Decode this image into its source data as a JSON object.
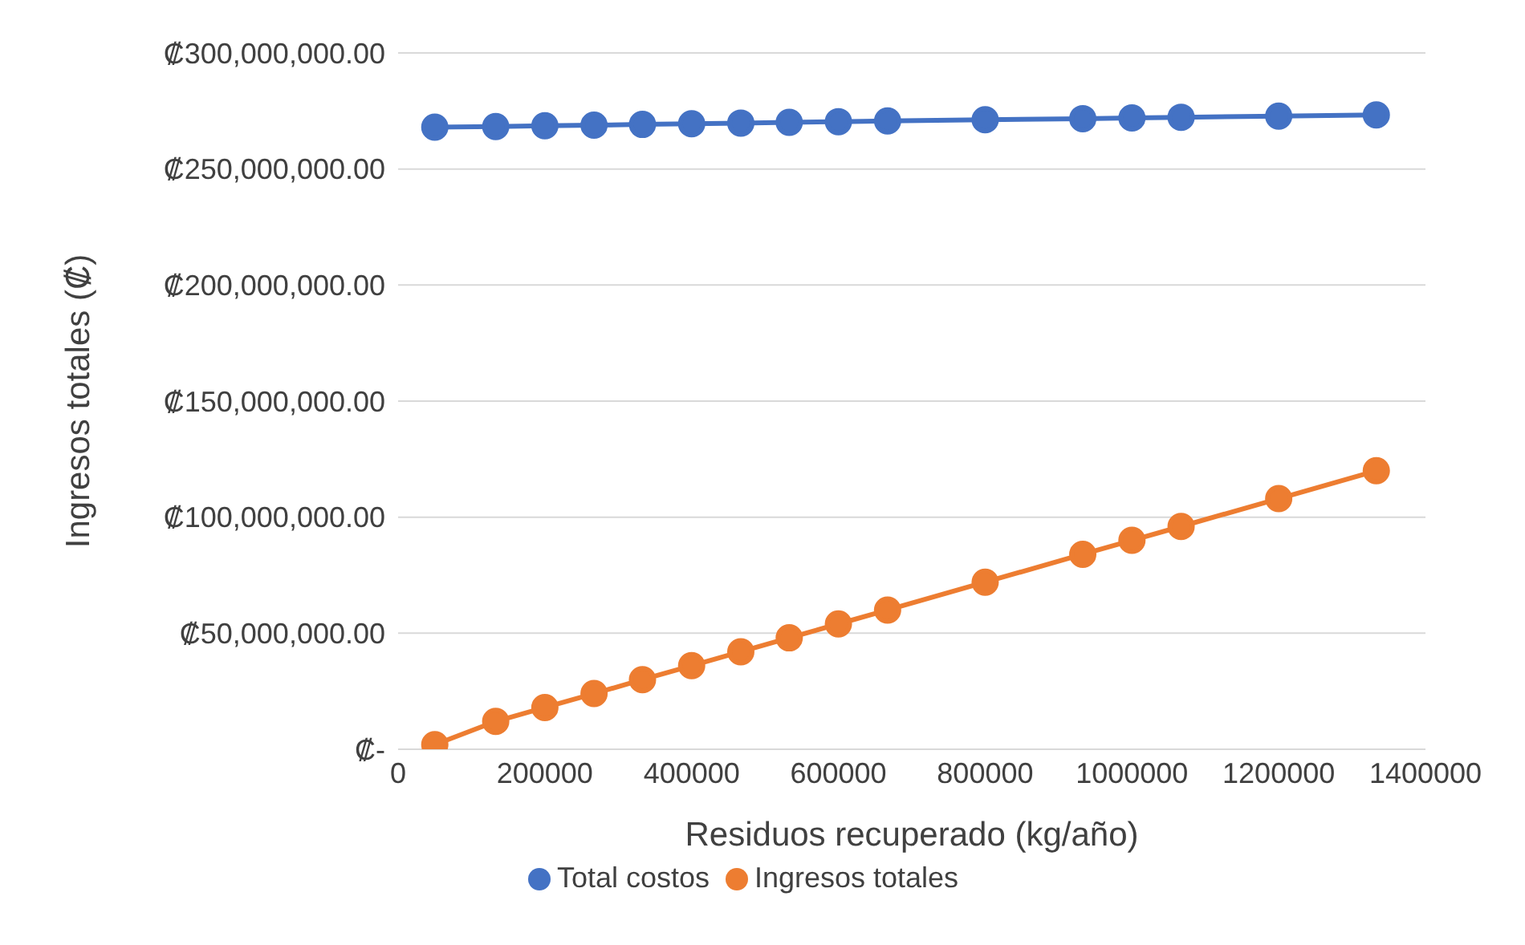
{
  "chart_data": {
    "type": "line",
    "xlabel": "Residuos recuperado (kg/año)",
    "ylabel": "Ingresos totales (₡)",
    "x": [
      50000,
      133000,
      200000,
      267000,
      333000,
      400000,
      467000,
      533000,
      600000,
      667000,
      800000,
      933000,
      1000000,
      1067000,
      1200000,
      1333000
    ],
    "series": [
      {
        "name": "Total costos",
        "color": "#4472c4",
        "values": [
          268000000,
          268300000,
          268600000,
          268900000,
          269200000,
          269500000,
          269800000,
          270100000,
          270400000,
          270700000,
          271200000,
          271700000,
          272000000,
          272300000,
          272800000,
          273300000
        ]
      },
      {
        "name": "Ingresos totales",
        "color": "#ed7d31",
        "values": [
          2000000,
          12000000,
          18000000,
          24000000,
          30000000,
          36000000,
          42000000,
          48000000,
          54000000,
          60000000,
          72000000,
          84000000,
          90000000,
          96000000,
          108000000,
          120000000
        ]
      }
    ],
    "xlim": [
      0,
      1400000
    ],
    "xticks": [
      0,
      200000,
      400000,
      600000,
      800000,
      1000000,
      1200000,
      1400000
    ],
    "ylim": [
      0,
      300000000
    ],
    "yticks": [
      {
        "value": 0,
        "label": "₡-"
      },
      {
        "value": 50000000,
        "label": "₡50,000,000.00"
      },
      {
        "value": 100000000,
        "label": "₡100,000,000.00"
      },
      {
        "value": 150000000,
        "label": "₡150,000,000.00"
      },
      {
        "value": 200000000,
        "label": "₡200,000,000.00"
      },
      {
        "value": 250000000,
        "label": "₡250,000,000.00"
      },
      {
        "value": 300000000,
        "label": "₡300,000,000.00"
      }
    ],
    "grid": "y",
    "legend": "bottom",
    "marker": "circle",
    "line_style": "solid"
  }
}
